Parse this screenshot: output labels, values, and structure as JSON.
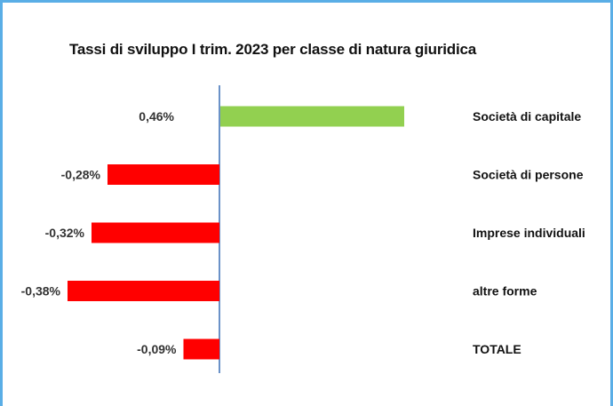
{
  "colors": {
    "frame": "#5aaee6",
    "positive_bar": "#92d050",
    "negative_bar": "#ff0000",
    "axis": "#3a6fb5"
  },
  "chart_data": {
    "type": "bar",
    "orientation": "horizontal",
    "title": "Tassi di sviluppo I trim. 2023 per classe di natura giuridica",
    "categories": [
      "Società di capitale",
      "Società di persone",
      "Imprese individuali",
      "altre forme",
      "TOTALE"
    ],
    "values": [
      0.46,
      -0.28,
      -0.32,
      -0.38,
      -0.09
    ],
    "value_labels": [
      "0,46%",
      "-0,28%",
      "-0,32%",
      "-0,38%",
      "-0,09%"
    ],
    "unit": "%",
    "xlim": [
      -0.55,
      0.6
    ],
    "grid": false,
    "legend": "none"
  }
}
